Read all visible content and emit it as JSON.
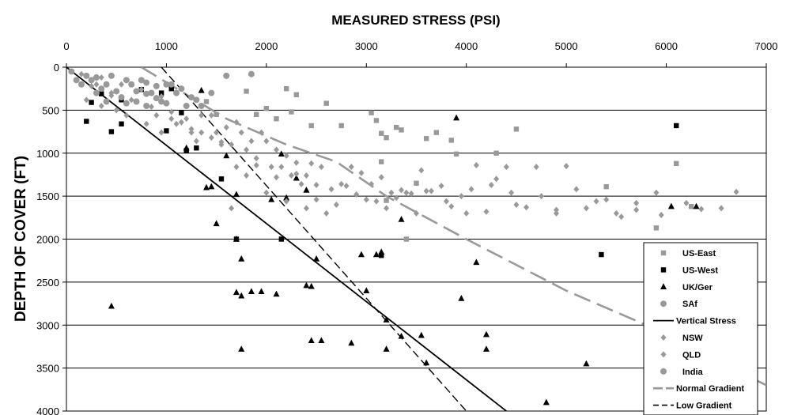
{
  "chart_data": {
    "type": "scatter",
    "title": "MEASURED STRESS (PSI)",
    "xlabel": "",
    "ylabel": "DEPTH OF COVER (FT)",
    "xlim": [
      0,
      7000
    ],
    "ylim": [
      0,
      4000
    ],
    "y_inverted": true,
    "x_axis_position": "top",
    "x_ticks": [
      0,
      1000,
      2000,
      3000,
      4000,
      5000,
      6000,
      7000
    ],
    "y_ticks": [
      0,
      500,
      1000,
      1500,
      2000,
      2500,
      3000,
      3500,
      4000
    ],
    "grid": "horizontal",
    "legend_position": "bottom-right",
    "colors": {
      "gray": "#999999",
      "black": "#000000"
    },
    "series": [
      {
        "name": "US-East",
        "marker": "square",
        "color": "#999999",
        "points": [
          [
            1400,
            400
          ],
          [
            1500,
            550
          ],
          [
            1800,
            280
          ],
          [
            1900,
            550
          ],
          [
            2000,
            480
          ],
          [
            2100,
            600
          ],
          [
            2200,
            250
          ],
          [
            2250,
            520
          ],
          [
            2300,
            320
          ],
          [
            2450,
            680
          ],
          [
            2600,
            420
          ],
          [
            2750,
            680
          ],
          [
            3050,
            530
          ],
          [
            3100,
            620
          ],
          [
            3150,
            770
          ],
          [
            3150,
            1100
          ],
          [
            3200,
            820
          ],
          [
            3200,
            1550
          ],
          [
            3300,
            700
          ],
          [
            3350,
            730
          ],
          [
            3400,
            2000
          ],
          [
            3500,
            1350
          ],
          [
            3600,
            830
          ],
          [
            3700,
            760
          ],
          [
            3850,
            850
          ],
          [
            3900,
            1010
          ],
          [
            4300,
            1000
          ],
          [
            4500,
            720
          ],
          [
            5400,
            1390
          ],
          [
            5900,
            1870
          ],
          [
            6100,
            1120
          ],
          [
            6250,
            1620
          ]
        ]
      },
      {
        "name": "US-West",
        "marker": "square",
        "color": "#000000",
        "points": [
          [
            200,
            630
          ],
          [
            250,
            410
          ],
          [
            350,
            310
          ],
          [
            450,
            750
          ],
          [
            550,
            380
          ],
          [
            550,
            660
          ],
          [
            750,
            260
          ],
          [
            950,
            300
          ],
          [
            1000,
            740
          ],
          [
            1050,
            250
          ],
          [
            1150,
            530
          ],
          [
            1200,
            970
          ],
          [
            1300,
            940
          ],
          [
            1550,
            1300
          ],
          [
            1700,
            2000
          ],
          [
            2150,
            2000
          ],
          [
            3150,
            2190
          ],
          [
            5350,
            2180
          ],
          [
            6100,
            680
          ]
        ]
      },
      {
        "name": "UK/Ger",
        "marker": "triangle",
        "color": "#000000",
        "points": [
          [
            450,
            2780
          ],
          [
            1200,
            940
          ],
          [
            1350,
            270
          ],
          [
            1400,
            1400
          ],
          [
            1450,
            1390
          ],
          [
            1500,
            1820
          ],
          [
            1600,
            1030
          ],
          [
            1700,
            1480
          ],
          [
            1700,
            2620
          ],
          [
            1750,
            2230
          ],
          [
            1750,
            2660
          ],
          [
            1750,
            3280
          ],
          [
            1700,
            2000
          ],
          [
            1850,
            2610
          ],
          [
            1950,
            2610
          ],
          [
            2050,
            1540
          ],
          [
            2100,
            2640
          ],
          [
            2150,
            1010
          ],
          [
            2200,
            1520
          ],
          [
            2300,
            1290
          ],
          [
            2400,
            2540
          ],
          [
            2400,
            1430
          ],
          [
            2450,
            2550
          ],
          [
            2450,
            3180
          ],
          [
            2500,
            2230
          ],
          [
            2550,
            3180
          ],
          [
            2850,
            3210
          ],
          [
            2950,
            2180
          ],
          [
            3000,
            2600
          ],
          [
            3100,
            2180
          ],
          [
            3150,
            2150
          ],
          [
            3200,
            2940
          ],
          [
            3200,
            3280
          ],
          [
            3350,
            1770
          ],
          [
            3350,
            3130
          ],
          [
            3550,
            3120
          ],
          [
            3600,
            3440
          ],
          [
            3900,
            590
          ],
          [
            3950,
            2690
          ],
          [
            4100,
            2270
          ],
          [
            4200,
            3110
          ],
          [
            4200,
            3280
          ],
          [
            4800,
            3900
          ],
          [
            5200,
            3450
          ],
          [
            6050,
            1620
          ],
          [
            6300,
            1620
          ]
        ]
      },
      {
        "name": "SAf",
        "marker": "circle",
        "color": "#999999",
        "points": [
          [
            100,
            150
          ],
          [
            200,
            100
          ],
          [
            300,
            120
          ],
          [
            300,
            300
          ],
          [
            400,
            200
          ],
          [
            400,
            400
          ],
          [
            500,
            280
          ],
          [
            600,
            150
          ],
          [
            600,
            420
          ],
          [
            700,
            280
          ],
          [
            700,
            400
          ],
          [
            800,
            180
          ],
          [
            800,
            310
          ],
          [
            800,
            450
          ],
          [
            900,
            220
          ],
          [
            900,
            360
          ],
          [
            1000,
            200
          ],
          [
            1000,
            420
          ],
          [
            1100,
            300
          ],
          [
            1200,
            450
          ],
          [
            1300,
            380
          ],
          [
            1600,
            100
          ],
          [
            1850,
            80
          ]
        ]
      },
      {
        "name": "Vertical Stress",
        "marker": "line",
        "color": "#000000",
        "dash": "solid",
        "points": [
          [
            0,
            0
          ],
          [
            4400,
            4000
          ]
        ]
      },
      {
        "name": "NSW",
        "marker": "diamond",
        "color": "#999999",
        "points": [
          [
            100,
            150
          ],
          [
            200,
            380
          ],
          [
            300,
            200
          ],
          [
            350,
            450
          ],
          [
            450,
            300
          ],
          [
            500,
            500
          ],
          [
            600,
            560
          ],
          [
            700,
            400
          ],
          [
            800,
            660
          ],
          [
            900,
            560
          ],
          [
            950,
            760
          ],
          [
            1050,
            600
          ],
          [
            1100,
            660
          ],
          [
            1200,
            600
          ],
          [
            1250,
            760
          ],
          [
            1300,
            860
          ],
          [
            1350,
            760
          ],
          [
            1450,
            560
          ],
          [
            1500,
            760
          ],
          [
            1550,
            870
          ],
          [
            1600,
            700
          ],
          [
            1650,
            900
          ],
          [
            1700,
            640
          ],
          [
            1750,
            760
          ],
          [
            1800,
            960
          ],
          [
            1850,
            860
          ],
          [
            1900,
            1060
          ],
          [
            1950,
            760
          ],
          [
            2000,
            860
          ],
          [
            2050,
            1160
          ],
          [
            2100,
            960
          ],
          [
            2150,
            1160
          ],
          [
            2200,
            1030
          ],
          [
            2250,
            1260
          ],
          [
            2300,
            1110
          ],
          [
            2350,
            1360
          ],
          [
            2400,
            1260
          ],
          [
            2450,
            1120
          ],
          [
            2500,
            1370
          ],
          [
            2550,
            1160
          ],
          [
            2650,
            1420
          ],
          [
            2750,
            1360
          ],
          [
            2850,
            1160
          ],
          [
            2950,
            1230
          ],
          [
            3050,
            1360
          ],
          [
            3150,
            1280
          ],
          [
            3250,
            1460
          ],
          [
            3350,
            1430
          ],
          [
            3450,
            1470
          ],
          [
            3550,
            1200
          ],
          [
            3650,
            1440
          ],
          [
            3750,
            1380
          ],
          [
            3850,
            1620
          ],
          [
            3950,
            1500
          ],
          [
            4050,
            1420
          ],
          [
            4200,
            1680
          ],
          [
            4300,
            1300
          ],
          [
            4450,
            1460
          ],
          [
            4600,
            1630
          ],
          [
            4750,
            1500
          ],
          [
            4900,
            1660
          ],
          [
            5000,
            1150
          ],
          [
            5200,
            1640
          ],
          [
            5400,
            1540
          ],
          [
            5550,
            1740
          ],
          [
            5700,
            1580
          ],
          [
            5900,
            1460
          ],
          [
            6200,
            1580
          ],
          [
            6350,
            1650
          ],
          [
            6550,
            1640
          ],
          [
            6700,
            1450
          ]
        ]
      },
      {
        "name": "QLD",
        "marker": "diamond",
        "color": "#999999",
        "points": [
          [
            150,
            80
          ],
          [
            250,
            220
          ],
          [
            350,
            120
          ],
          [
            450,
            330
          ],
          [
            550,
            200
          ],
          [
            650,
            380
          ],
          [
            750,
            260
          ],
          [
            850,
            460
          ],
          [
            950,
            340
          ],
          [
            1050,
            520
          ],
          [
            1150,
            640
          ],
          [
            1250,
            720
          ],
          [
            1350,
            560
          ],
          [
            1450,
            820
          ],
          [
            1550,
            900
          ],
          [
            1650,
            1640
          ],
          [
            1700,
            1160
          ],
          [
            1800,
            1260
          ],
          [
            1900,
            1140
          ],
          [
            2000,
            1460
          ],
          [
            2100,
            1280
          ],
          [
            2200,
            1560
          ],
          [
            2300,
            1240
          ],
          [
            2400,
            1640
          ],
          [
            2500,
            1540
          ],
          [
            2600,
            1700
          ],
          [
            2700,
            1600
          ],
          [
            2800,
            1380
          ],
          [
            2900,
            1480
          ],
          [
            3000,
            1540
          ],
          [
            3100,
            1560
          ],
          [
            3200,
            1640
          ],
          [
            3300,
            1520
          ],
          [
            3400,
            1460
          ],
          [
            3500,
            1700
          ],
          [
            3600,
            1440
          ],
          [
            3800,
            1560
          ],
          [
            4000,
            1700
          ],
          [
            4100,
            1140
          ],
          [
            4250,
            1370
          ],
          [
            4400,
            1160
          ],
          [
            4500,
            1600
          ],
          [
            4700,
            1160
          ],
          [
            4900,
            1700
          ],
          [
            5100,
            1420
          ],
          [
            5300,
            1560
          ],
          [
            5500,
            1700
          ],
          [
            5700,
            1660
          ],
          [
            5950,
            1720
          ]
        ]
      },
      {
        "name": "India",
        "marker": "circle",
        "color": "#999999",
        "points": [
          [
            50,
            50
          ],
          [
            150,
            200
          ],
          [
            250,
            150
          ],
          [
            350,
            250
          ],
          [
            450,
            100
          ],
          [
            550,
            350
          ],
          [
            650,
            200
          ],
          [
            750,
            150
          ],
          [
            850,
            300
          ],
          [
            950,
            400
          ],
          [
            1050,
            200
          ],
          [
            1150,
            250
          ],
          [
            1250,
            350
          ],
          [
            1350,
            450
          ],
          [
            1450,
            300
          ]
        ]
      },
      {
        "name": "Normal Gradient",
        "marker": "line",
        "color": "#999999",
        "dash": "long-dash",
        "points": [
          [
            750,
            0
          ],
          [
            1600,
            600
          ],
          [
            2200,
            900
          ],
          [
            2700,
            1100
          ],
          [
            3200,
            1500
          ],
          [
            4000,
            2000
          ],
          [
            5000,
            2600
          ],
          [
            5800,
            3000
          ],
          [
            7000,
            3700
          ]
        ]
      },
      {
        "name": "Low Gradient",
        "marker": "line",
        "color": "#000000",
        "dash": "dash",
        "points": [
          [
            950,
            0
          ],
          [
            4000,
            4000
          ]
        ]
      }
    ]
  }
}
